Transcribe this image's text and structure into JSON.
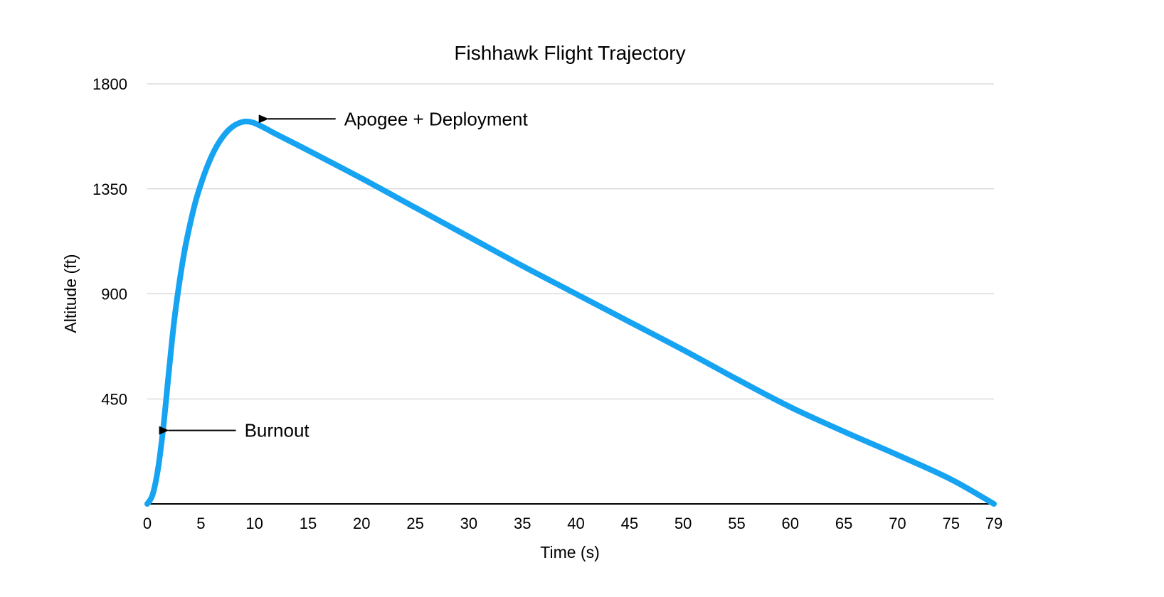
{
  "chart_data": {
    "type": "line",
    "title": "Fishhawk Flight Trajectory",
    "xlabel": "Time (s)",
    "ylabel": "Altitude (ft)",
    "xlim": [
      0,
      79
    ],
    "ylim": [
      0,
      1800
    ],
    "x_ticks": [
      "0",
      "5",
      "10",
      "15",
      "20",
      "25",
      "30",
      "35",
      "40",
      "45",
      "50",
      "55",
      "60",
      "65",
      "70",
      "75",
      "79"
    ],
    "y_ticks": [
      "450",
      "900",
      "1350",
      "1800"
    ],
    "grid": true,
    "legend": "none",
    "series": [
      {
        "color": "#16a3f2",
        "x": [
          0,
          0.5,
          1,
          1.5,
          2,
          2.5,
          3,
          3.5,
          4,
          4.5,
          5,
          5.5,
          6,
          6.5,
          7,
          7.5,
          8,
          8.5,
          9,
          9.5,
          10,
          11,
          12,
          15,
          20,
          25,
          30,
          35,
          40,
          45,
          50,
          55,
          60,
          65,
          70,
          75,
          79
        ],
        "y": [
          0,
          40,
          150,
          330,
          560,
          780,
          950,
          1090,
          1200,
          1295,
          1370,
          1435,
          1490,
          1535,
          1570,
          1598,
          1618,
          1631,
          1638,
          1638,
          1632,
          1610,
          1585,
          1515,
          1395,
          1270,
          1145,
          1020,
          900,
          780,
          660,
          535,
          415,
          310,
          210,
          105,
          0
        ]
      }
    ],
    "annotations": [
      {
        "text": "Apogee + Deployment",
        "x": 11,
        "y": 1650
      },
      {
        "text": "Burnout",
        "x": 1.7,
        "y": 315
      }
    ]
  }
}
